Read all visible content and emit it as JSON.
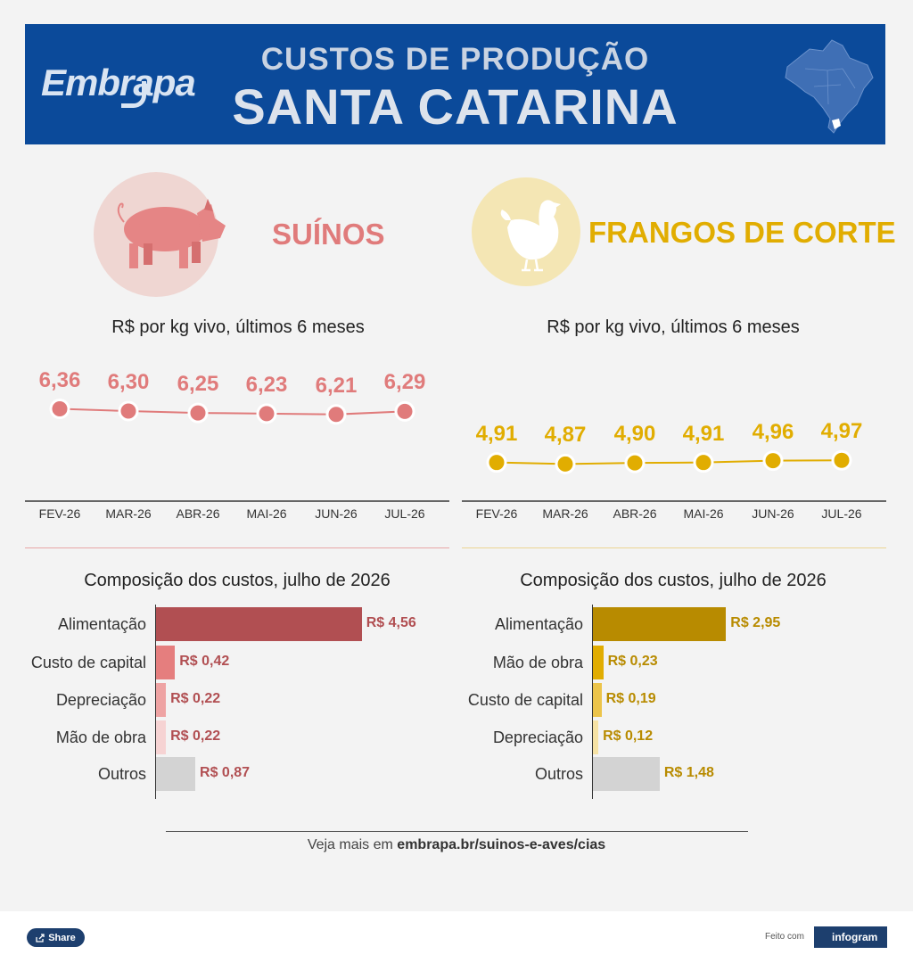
{
  "header": {
    "logo_text": "Embrapa",
    "title_line1": "CUSTOS DE PRODUÇÃO",
    "title_line2": "SANTA CATARINA",
    "map_icon": "brazil-map-icon"
  },
  "sections": {
    "pig": {
      "title": "SUÍNOS",
      "icon": "pig-icon",
      "color": "#e07b7b"
    },
    "chicken": {
      "title": "FRANGOS DE CORTE",
      "icon": "chicken-icon",
      "color": "#e1ad01"
    }
  },
  "chart_data": [
    {
      "type": "line",
      "title": "R$ por kg vivo, últimos 6 meses",
      "categories": [
        "FEV-26",
        "MAR-26",
        "ABR-26",
        "MAI-26",
        "JUN-26",
        "JUL-26"
      ],
      "values": [
        6.36,
        6.3,
        6.25,
        6.23,
        6.21,
        6.29
      ],
      "labels": [
        "6,36",
        "6,30",
        "6,25",
        "6,23",
        "6,21",
        "6,29"
      ],
      "color": "#e07b7b",
      "grid": false
    },
    {
      "type": "line",
      "title": "R$ por kg vivo, últimos 6 meses",
      "categories": [
        "FEV-26",
        "MAR-26",
        "ABR-26",
        "MAI-26",
        "JUN-26",
        "JUL-26"
      ],
      "values": [
        4.91,
        4.87,
        4.9,
        4.91,
        4.96,
        4.97
      ],
      "labels": [
        "4,91",
        "4,87",
        "4,90",
        "4,91",
        "4,96",
        "4,97"
      ],
      "color": "#e1ad01",
      "grid": false
    },
    {
      "type": "bar",
      "orientation": "horizontal",
      "title": "Composição dos custos, julho de 2026",
      "categories": [
        "Alimentação",
        "Custo de capital",
        "Depreciação",
        "Mão de obra",
        "Outros"
      ],
      "values": [
        4.56,
        0.42,
        0.22,
        0.22,
        0.87
      ],
      "labels": [
        "R$ 4,56",
        "R$ 0,42",
        "R$ 0,22",
        "R$ 0,22",
        "R$ 0,87"
      ],
      "colors": [
        "#b14f52",
        "#e57e7e",
        "#eea3a3",
        "#f6d3d3",
        "#d3d3d3"
      ],
      "label_color": "#b14f52"
    },
    {
      "type": "bar",
      "orientation": "horizontal",
      "title": "Composição dos custos, julho de 2026",
      "categories": [
        "Alimentação",
        "Mão de obra",
        "Custo de capital",
        "Depreciação",
        "Outros"
      ],
      "values": [
        2.95,
        0.23,
        0.19,
        0.12,
        1.48
      ],
      "labels": [
        "R$ 2,95",
        "R$ 0,23",
        "R$ 0,19",
        "R$ 0,12",
        "R$ 1,48"
      ],
      "colors": [
        "#b88b00",
        "#e1ad01",
        "#ecc44a",
        "#f6e2a4",
        "#d3d3d3"
      ],
      "label_color": "#b88b00"
    }
  ],
  "footer": {
    "prefix": "Veja mais em ",
    "link": "embrapa.br/suinos-e-aves/cias"
  },
  "bottom": {
    "share_label": "Share",
    "made_with": "Feito com",
    "brand": "infogram"
  }
}
